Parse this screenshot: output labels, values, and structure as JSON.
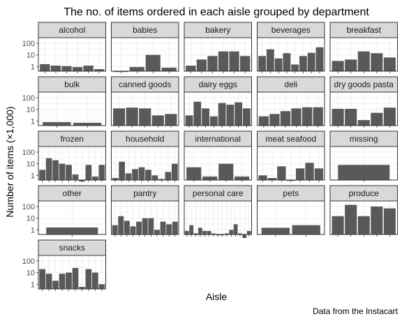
{
  "chart_data": {
    "type": "bar",
    "layout": "faceted small multiples",
    "title": "The no. of items ordered in each aisle grouped by department",
    "xlabel": "Aisle",
    "ylabel": "Number of items (×1,000)",
    "caption": "Data from the Instacart",
    "y_scale": "log10",
    "y_ticks": [
      1,
      10,
      100
    ],
    "y_tick_labels": [
      "1",
      "10",
      "100"
    ],
    "ylim": [
      0.4,
      300
    ],
    "bar_color": "#595959",
    "strip_color": "#d9d9d9",
    "facets": [
      {
        "name": "alcohol",
        "values": [
          1.6,
          1.2,
          1.1,
          0.9,
          1.2,
          0.6
        ]
      },
      {
        "name": "babies",
        "values": [
          0.4,
          0.9,
          10,
          0.8
        ]
      },
      {
        "name": "bakery",
        "values": [
          1.2,
          4,
          8,
          20,
          20,
          8
        ]
      },
      {
        "name": "beverages",
        "values": [
          8,
          30,
          5,
          14,
          1.5,
          8,
          15,
          45
        ]
      },
      {
        "name": "breakfast",
        "values": [
          3,
          4,
          20,
          14,
          6
        ]
      },
      {
        "name": "bulk",
        "values": [
          0.8,
          0.7
        ]
      },
      {
        "name": "canned goods",
        "values": [
          12,
          14,
          12,
          3,
          4
        ]
      },
      {
        "name": "dairy eggs",
        "values": [
          3,
          45,
          12,
          2.5,
          35,
          25,
          40,
          12
        ]
      },
      {
        "name": "deli",
        "values": [
          2.5,
          4,
          7,
          12,
          15,
          15
        ]
      },
      {
        "name": "dry goods pasta",
        "values": [
          11,
          11,
          1.2,
          5,
          14
        ]
      },
      {
        "name": "frozen",
        "values": [
          3,
          30,
          20,
          10,
          8,
          1.2,
          0.3,
          8,
          0.8,
          8
        ]
      },
      {
        "name": "household",
        "values": [
          0.6,
          15,
          1.5,
          3.5,
          5,
          3,
          1,
          0.5,
          2,
          10
        ]
      },
      {
        "name": "international",
        "values": [
          5,
          0.8,
          10,
          0.8
        ]
      },
      {
        "name": "meat seafood",
        "values": [
          1,
          0.6,
          6,
          0.4,
          4,
          12,
          4
        ]
      },
      {
        "name": "missing",
        "values": [
          8
        ]
      },
      {
        "name": "other",
        "values": [
          1.6
        ]
      },
      {
        "name": "pantry",
        "values": [
          2.5,
          15,
          6,
          2,
          5,
          10,
          10,
          1,
          5,
          3,
          5
        ]
      },
      {
        "name": "personal care",
        "values": [
          0.8,
          2.5,
          0.5,
          1.5,
          0.8,
          0.8,
          0.5,
          0.4,
          0.4,
          0.5,
          1,
          3,
          0.5,
          0.2,
          0.8
        ]
      },
      {
        "name": "pets",
        "values": [
          1.5,
          2.5
        ]
      },
      {
        "name": "produce",
        "values": [
          15,
          140,
          15,
          100,
          70
        ]
      },
      {
        "name": "snacks",
        "values": [
          20,
          8,
          2,
          8,
          10,
          25,
          0.6,
          20,
          10,
          1
        ]
      }
    ]
  }
}
